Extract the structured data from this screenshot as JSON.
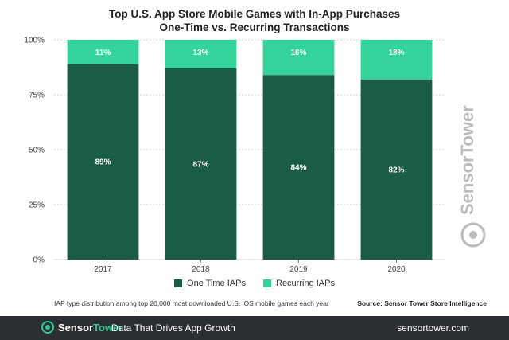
{
  "title_line1": "Top U.S. App Store Mobile Games with In-App Purchases",
  "title_line2": "One-Time vs. Recurring Transactions",
  "colors": {
    "one_time": "#1a5c45",
    "recurring": "#34d39b",
    "grid": "#d0d0d0",
    "footer_bg": "#2b2f33",
    "accent": "#2ecc8f"
  },
  "chart_data": {
    "type": "bar",
    "stacked": true,
    "categories": [
      "2017",
      "2018",
      "2019",
      "2020"
    ],
    "series": [
      {
        "name": "One Time IAPs",
        "values": [
          89,
          87,
          84,
          82
        ],
        "labels": [
          "89%",
          "87%",
          "84%",
          "82%"
        ]
      },
      {
        "name": "Recurring IAPs",
        "values": [
          11,
          13,
          16,
          18
        ],
        "labels": [
          "11%",
          "13%",
          "16%",
          "18%"
        ]
      }
    ],
    "ylim": [
      0,
      100
    ],
    "yticks": [
      0,
      25,
      50,
      75,
      100
    ],
    "ytick_labels": [
      "0%",
      "25%",
      "50%",
      "75%",
      "100%"
    ],
    "grid": true,
    "legend": "bottom"
  },
  "footnote": "IAP type distribution among top 20,000 most downloaded U.S. iOS mobile games each year",
  "source": "Source: Sensor Tower Store Intelligence",
  "footer": {
    "brand_a": "Sensor",
    "brand_b": "Tower",
    "tagline": "Data That Drives App Growth",
    "url": "sensortower.com",
    "logo_icon": "sensor-tower-logo-icon"
  },
  "watermark": "SensorTower"
}
